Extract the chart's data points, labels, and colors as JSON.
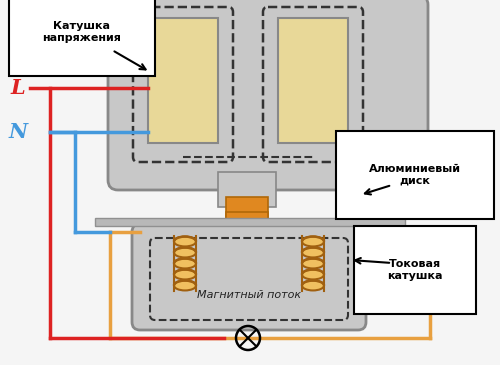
{
  "bg_color": "#f5f5f5",
  "gray_core": "#c8c8c8",
  "gray_core_dark": "#888888",
  "coil_fill": "#e8d898",
  "orange_color": "#e08820",
  "orange_wire": "#e8a040",
  "dashed_color": "#333333",
  "label_L": "L",
  "label_N": "N",
  "label_voltage_coil": "Катушка\nнапряжения",
  "label_aluminum_disk": "Алюминиевый\nдиск",
  "label_magnetic_flux": "Магнитный поток",
  "label_current_coil": "Токовая\nкатушка",
  "line_red": "#dd2222",
  "line_blue": "#4499dd",
  "wire_orange": "#e8a040",
  "disk_color": "#b8b8b8"
}
